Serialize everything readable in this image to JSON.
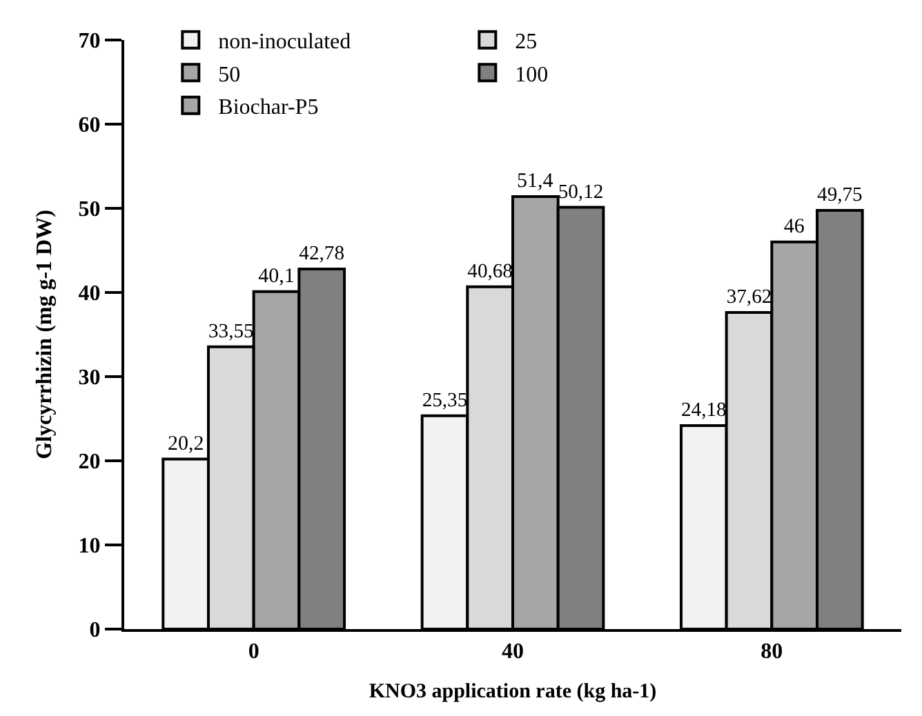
{
  "chart_data": {
    "type": "bar",
    "xlabel": "KNO3 application rate (kg ha-1)",
    "ylabel": "Glycyrrhizin (mg g-1 DW)",
    "categories": [
      "0",
      "40",
      "80"
    ],
    "series": [
      {
        "name": "non-inoculated",
        "color": "#f2f2f2",
        "values": [
          20.2,
          25.35,
          24.18
        ],
        "value_labels": [
          "20,2",
          "25,35",
          "24,18"
        ]
      },
      {
        "name": "25",
        "color": "#d9d9d9",
        "values": [
          33.55,
          40.68,
          37.62
        ],
        "value_labels": [
          "33,55",
          "40,68",
          "37,62"
        ]
      },
      {
        "name": "50",
        "color": "#a6a6a6",
        "values": [
          40.1,
          51.4,
          46
        ],
        "value_labels": [
          "40,1",
          "51,4",
          "46"
        ]
      },
      {
        "name": "100",
        "color": "#808080",
        "values": [
          42.78,
          50.12,
          49.75
        ],
        "value_labels": [
          "42,78",
          "50,12",
          "49,75"
        ]
      },
      {
        "name": "Biochar-P5",
        "color": "#a6a6a6",
        "values": [
          null,
          null,
          null
        ]
      }
    ],
    "ylim": [
      0,
      70
    ],
    "yticks": [
      0,
      10,
      20,
      30,
      40,
      50,
      60,
      70
    ],
    "legend": "top left"
  }
}
